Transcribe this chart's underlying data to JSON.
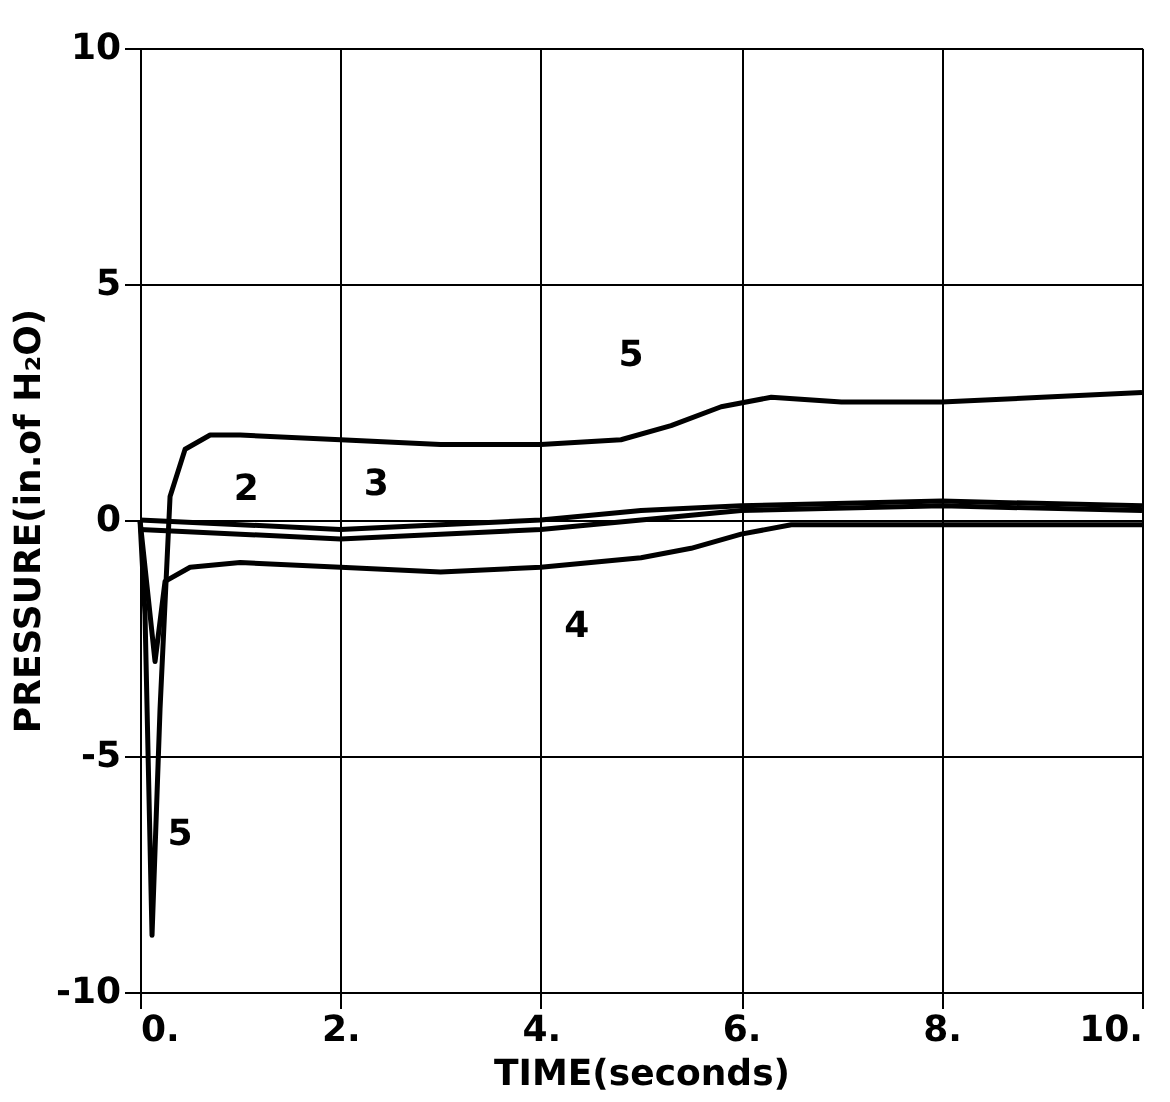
{
  "chart_data": {
    "type": "line",
    "xlabel": "TIME(seconds)",
    "ylabel": "PRESSURE(in.of H₂O)",
    "xlim": [
      0,
      10
    ],
    "ylim": [
      -10,
      10
    ],
    "xticks": [
      {
        "value": 0,
        "label": "0."
      },
      {
        "value": 2,
        "label": "2."
      },
      {
        "value": 4,
        "label": "4."
      },
      {
        "value": 6,
        "label": "6."
      },
      {
        "value": 8,
        "label": "8."
      },
      {
        "value": 10,
        "label": "10."
      }
    ],
    "yticks": [
      -10,
      -5,
      0,
      5,
      10
    ],
    "grid": true,
    "legend": false,
    "marker": "none",
    "line_style": "solid",
    "series": [
      {
        "name": "5",
        "color": "#000000",
        "x": [
          0,
          0.05,
          0.12,
          0.2,
          0.3,
          0.45,
          0.7,
          1,
          2,
          3,
          4,
          4.8,
          5.3,
          5.8,
          6.3,
          7,
          8,
          9,
          10
        ],
        "values": [
          0,
          -2,
          -8.8,
          -4,
          0.5,
          1.5,
          1.8,
          1.8,
          1.7,
          1.6,
          1.6,
          1.7,
          2.0,
          2.4,
          2.6,
          2.5,
          2.5,
          2.6,
          2.7
        ]
      },
      {
        "name": "4",
        "color": "#000000",
        "x": [
          0,
          0.15,
          0.25,
          0.5,
          1,
          2,
          3,
          4,
          5,
          5.5,
          6,
          6.5,
          8,
          10
        ],
        "values": [
          0,
          -3,
          -1.3,
          -1.0,
          -0.9,
          -1.0,
          -1.1,
          -1.0,
          -0.8,
          -0.6,
          -0.3,
          -0.1,
          -0.1,
          -0.1
        ]
      },
      {
        "name": "2",
        "color": "#000000",
        "x": [
          0,
          1,
          2,
          3,
          4,
          5,
          6,
          8,
          10
        ],
        "values": [
          -0.2,
          -0.3,
          -0.4,
          -0.3,
          -0.2,
          0,
          0.2,
          0.3,
          0.2
        ]
      },
      {
        "name": "3",
        "color": "#000000",
        "x": [
          0,
          1,
          2,
          3,
          4,
          5,
          6,
          8,
          10
        ],
        "values": [
          0,
          -0.1,
          -0.2,
          -0.1,
          0,
          0.2,
          0.3,
          0.4,
          0.3
        ]
      }
    ]
  }
}
